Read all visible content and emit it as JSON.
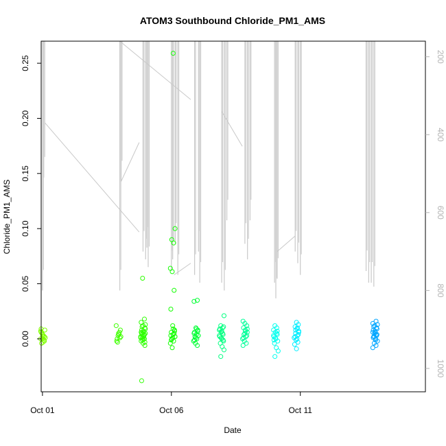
{
  "chart_data": {
    "type": "scatter",
    "title": "ATOM3 Southbound Chloride_PM1_AMS",
    "xlabel": "Date",
    "ylabel": "Chloride_PM1_AMS",
    "x_ticks": [
      {
        "day": 1,
        "label": "Oct 01"
      },
      {
        "day": 6,
        "label": "Oct 06"
      },
      {
        "day": 11,
        "label": "Oct 11"
      }
    ],
    "xlim": [
      0.95,
      15.85
    ],
    "ylim": [
      -0.048,
      0.27
    ],
    "y_ticks": [
      0.0,
      0.05,
      0.1,
      0.15,
      0.2,
      0.25
    ],
    "y_tick_labels": [
      "0.00",
      "0.05",
      "0.10",
      "0.15",
      "0.20",
      "0.25"
    ],
    "right_axis": {
      "label": "",
      "reversed": true,
      "ylim": [
        1060,
        160
      ],
      "ticks": [
        200,
        400,
        600,
        800,
        1000
      ],
      "tick_labels": [
        "200",
        "400",
        "600",
        "800",
        "1000"
      ],
      "color": "#b3b3b3"
    },
    "series_secondary": {
      "name": "",
      "color": "#c8c8c8",
      "legs": [
        {
          "day": 1.0,
          "low": 800
        },
        {
          "day": 1.05,
          "low": 510
        },
        {
          "day": 4.0,
          "low": 800
        },
        {
          "day": 4.05,
          "low": 520
        },
        {
          "day": 4.9,
          "low": 700
        },
        {
          "day": 5.0,
          "low": 720
        },
        {
          "day": 5.05,
          "low": 690
        },
        {
          "day": 5.1,
          "low": 740
        },
        {
          "day": 6.0,
          "low": 750
        },
        {
          "day": 6.05,
          "low": 720
        },
        {
          "day": 6.15,
          "low": 680
        },
        {
          "day": 6.25,
          "low": 760
        },
        {
          "day": 6.9,
          "low": 760
        },
        {
          "day": 7.05,
          "low": 700
        },
        {
          "day": 7.1,
          "low": 780
        },
        {
          "day": 7.95,
          "low": 780
        },
        {
          "day": 8.05,
          "low": 800
        },
        {
          "day": 8.15,
          "low": 620
        },
        {
          "day": 8.85,
          "low": 680
        },
        {
          "day": 8.95,
          "low": 720
        },
        {
          "day": 9.05,
          "low": 620
        },
        {
          "day": 10.0,
          "low": 780
        },
        {
          "day": 10.05,
          "low": 820
        },
        {
          "day": 10.1,
          "low": 770
        },
        {
          "day": 10.8,
          "low": 700
        },
        {
          "day": 10.9,
          "low": 730
        },
        {
          "day": 11.0,
          "low": 760
        },
        {
          "day": 13.55,
          "low": 750
        },
        {
          "day": 13.65,
          "low": 780
        },
        {
          "day": 13.75,
          "low": 780
        },
        {
          "day": 13.85,
          "low": 790
        }
      ],
      "connectors": [
        [
          {
            "day": 1.1,
            "v": 370
          },
          {
            "day": 4.75,
            "v": 650
          }
        ],
        [
          {
            "day": 4.05,
            "v": 520
          },
          {
            "day": 4.75,
            "v": 420
          }
        ],
        [
          {
            "day": 4.0,
            "v": 160
          },
          {
            "day": 6.75,
            "v": 310
          }
        ],
        [
          {
            "day": 6.1,
            "v": 760
          },
          {
            "day": 6.75,
            "v": 730
          }
        ],
        [
          {
            "day": 7.95,
            "v": 340
          },
          {
            "day": 8.75,
            "v": 430
          }
        ],
        [
          {
            "day": 10.1,
            "v": 700
          },
          {
            "day": 10.8,
            "v": 660
          }
        ]
      ]
    },
    "series": [
      {
        "name": "",
        "color": "#7fff00",
        "day_center": 1.02,
        "points": [
          0.0,
          0.004,
          -0.002,
          0.006,
          0.002,
          0.008,
          -0.004,
          0.003,
          0.001,
          0.005,
          -0.001,
          0.007,
          0.0,
          0.002,
          0.009,
          -0.003
        ]
      },
      {
        "name": "",
        "color": "#3fff00",
        "day_center": 3.95,
        "points": [
          0.0,
          0.004,
          0.002,
          -0.003,
          0.006,
          0.012,
          0.003,
          0.001,
          -0.002,
          0.005,
          0.008
        ]
      },
      {
        "name": "",
        "color": "#2eff00",
        "day_center": 4.9,
        "points": [
          0.055,
          0.018,
          0.015,
          0.012,
          0.01,
          0.008,
          0.006,
          0.005,
          0.004,
          0.003,
          0.002,
          0.001,
          0.0,
          -0.002,
          -0.004,
          -0.006,
          -0.038,
          0.007,
          0.009,
          0.011,
          0.003,
          0.001,
          -0.001,
          0.004,
          0.006,
          0.002,
          -0.003,
          0.005,
          0.0,
          0.013
        ]
      },
      {
        "name": "",
        "color": "#12ff00",
        "day_center": 6.05,
        "points": [
          0.259,
          0.1,
          0.09,
          0.087,
          0.064,
          0.061,
          0.044,
          0.027,
          0.012,
          0.008,
          0.006,
          0.004,
          0.002,
          0.0,
          -0.002,
          -0.004,
          -0.008,
          0.005,
          0.003,
          0.001,
          0.007,
          -0.001,
          0.009,
          0.002
        ]
      },
      {
        "name": "",
        "color": "#00ff33",
        "day_center": 6.95,
        "points": [
          0.035,
          0.034,
          0.01,
          0.008,
          0.006,
          0.004,
          0.003,
          0.002,
          0.0,
          -0.002,
          -0.004,
          -0.006,
          0.005,
          0.001,
          0.007,
          -0.001,
          0.009,
          0.003
        ]
      },
      {
        "name": "",
        "color": "#00ff80",
        "day_center": 7.95,
        "points": [
          0.021,
          0.012,
          0.01,
          0.008,
          0.006,
          0.004,
          0.002,
          0.0,
          -0.002,
          -0.004,
          -0.007,
          -0.01,
          -0.016,
          0.005,
          0.003,
          0.001,
          -0.001,
          0.009,
          0.007,
          0.011
        ]
      },
      {
        "name": "",
        "color": "#00ff99",
        "day_center": 8.85,
        "points": [
          0.016,
          0.014,
          0.012,
          0.01,
          0.008,
          0.006,
          0.004,
          0.002,
          0.0,
          -0.002,
          -0.004,
          -0.006,
          0.005,
          0.003,
          0.001,
          0.007,
          0.009
        ]
      },
      {
        "name": "",
        "color": "#00ffee",
        "day_center": 10.05,
        "points": [
          0.012,
          0.01,
          0.008,
          0.006,
          0.004,
          0.002,
          0.0,
          -0.002,
          -0.004,
          -0.008,
          -0.011,
          -0.016,
          0.005,
          0.003,
          0.001,
          0.007,
          -0.001
        ]
      },
      {
        "name": "",
        "color": "#00eeff",
        "day_center": 10.85,
        "points": [
          0.015,
          0.013,
          0.011,
          0.009,
          0.007,
          0.005,
          0.003,
          0.001,
          -0.001,
          -0.003,
          -0.005,
          -0.009,
          0.004,
          0.002,
          0.0,
          0.006,
          0.008,
          0.01
        ]
      },
      {
        "name": "",
        "color": "#00a6ff",
        "day_center": 13.9,
        "points": [
          0.016,
          0.014,
          0.012,
          0.01,
          0.008,
          0.006,
          0.004,
          0.002,
          0.0,
          -0.002,
          -0.004,
          -0.006,
          -0.008,
          0.005,
          0.003,
          0.001,
          0.007,
          0.009,
          0.011,
          -0.001,
          0.013,
          0.002,
          0.004,
          0.006
        ]
      }
    ]
  }
}
